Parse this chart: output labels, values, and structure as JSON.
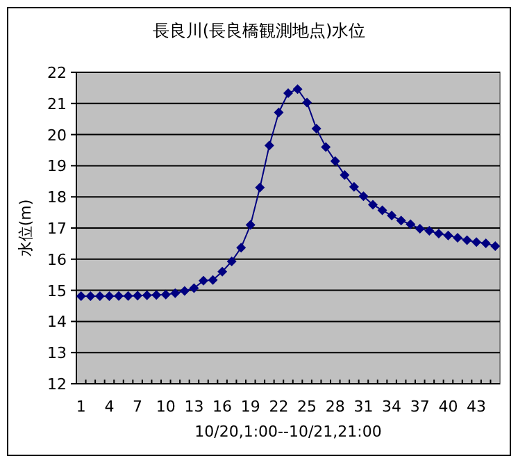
{
  "chart_data": {
    "type": "line",
    "title": "長良川(長良橋観測地点)水位",
    "xlabel": "10/20,1:00--10/21,21:00",
    "ylabel": "水位(m)",
    "categories": [
      "1",
      null,
      null,
      "4",
      null,
      null,
      "7",
      null,
      null,
      "10",
      null,
      null,
      "13",
      null,
      null,
      "16",
      null,
      null,
      "19",
      null,
      null,
      "22",
      null,
      null,
      "25",
      null,
      null,
      "28",
      null,
      null,
      "31",
      null,
      null,
      "34",
      null,
      null,
      "37",
      null,
      null,
      "40",
      null,
      null,
      "43",
      null,
      null
    ],
    "series": [
      {
        "color": "#000080",
        "values": [
          14.81,
          14.81,
          14.81,
          14.81,
          14.82,
          14.82,
          14.83,
          14.84,
          14.85,
          14.86,
          14.91,
          14.98,
          15.07,
          15.31,
          15.33,
          15.6,
          15.93,
          16.37,
          17.1,
          18.3,
          19.65,
          20.71,
          21.33,
          21.46,
          21.03,
          20.19,
          19.6,
          19.15,
          18.7,
          18.32,
          18.02,
          17.75,
          17.57,
          17.4,
          17.24,
          17.12,
          16.98,
          16.91,
          16.82,
          16.76,
          16.69,
          16.61,
          16.55,
          16.51,
          16.42
        ]
      }
    ],
    "ylim": [
      12,
      22
    ],
    "yticks": [
      12,
      13,
      14,
      15,
      16,
      17,
      18,
      19,
      20,
      21,
      22
    ],
    "grid": "y",
    "marker": "diamond",
    "line_style": "solid"
  }
}
